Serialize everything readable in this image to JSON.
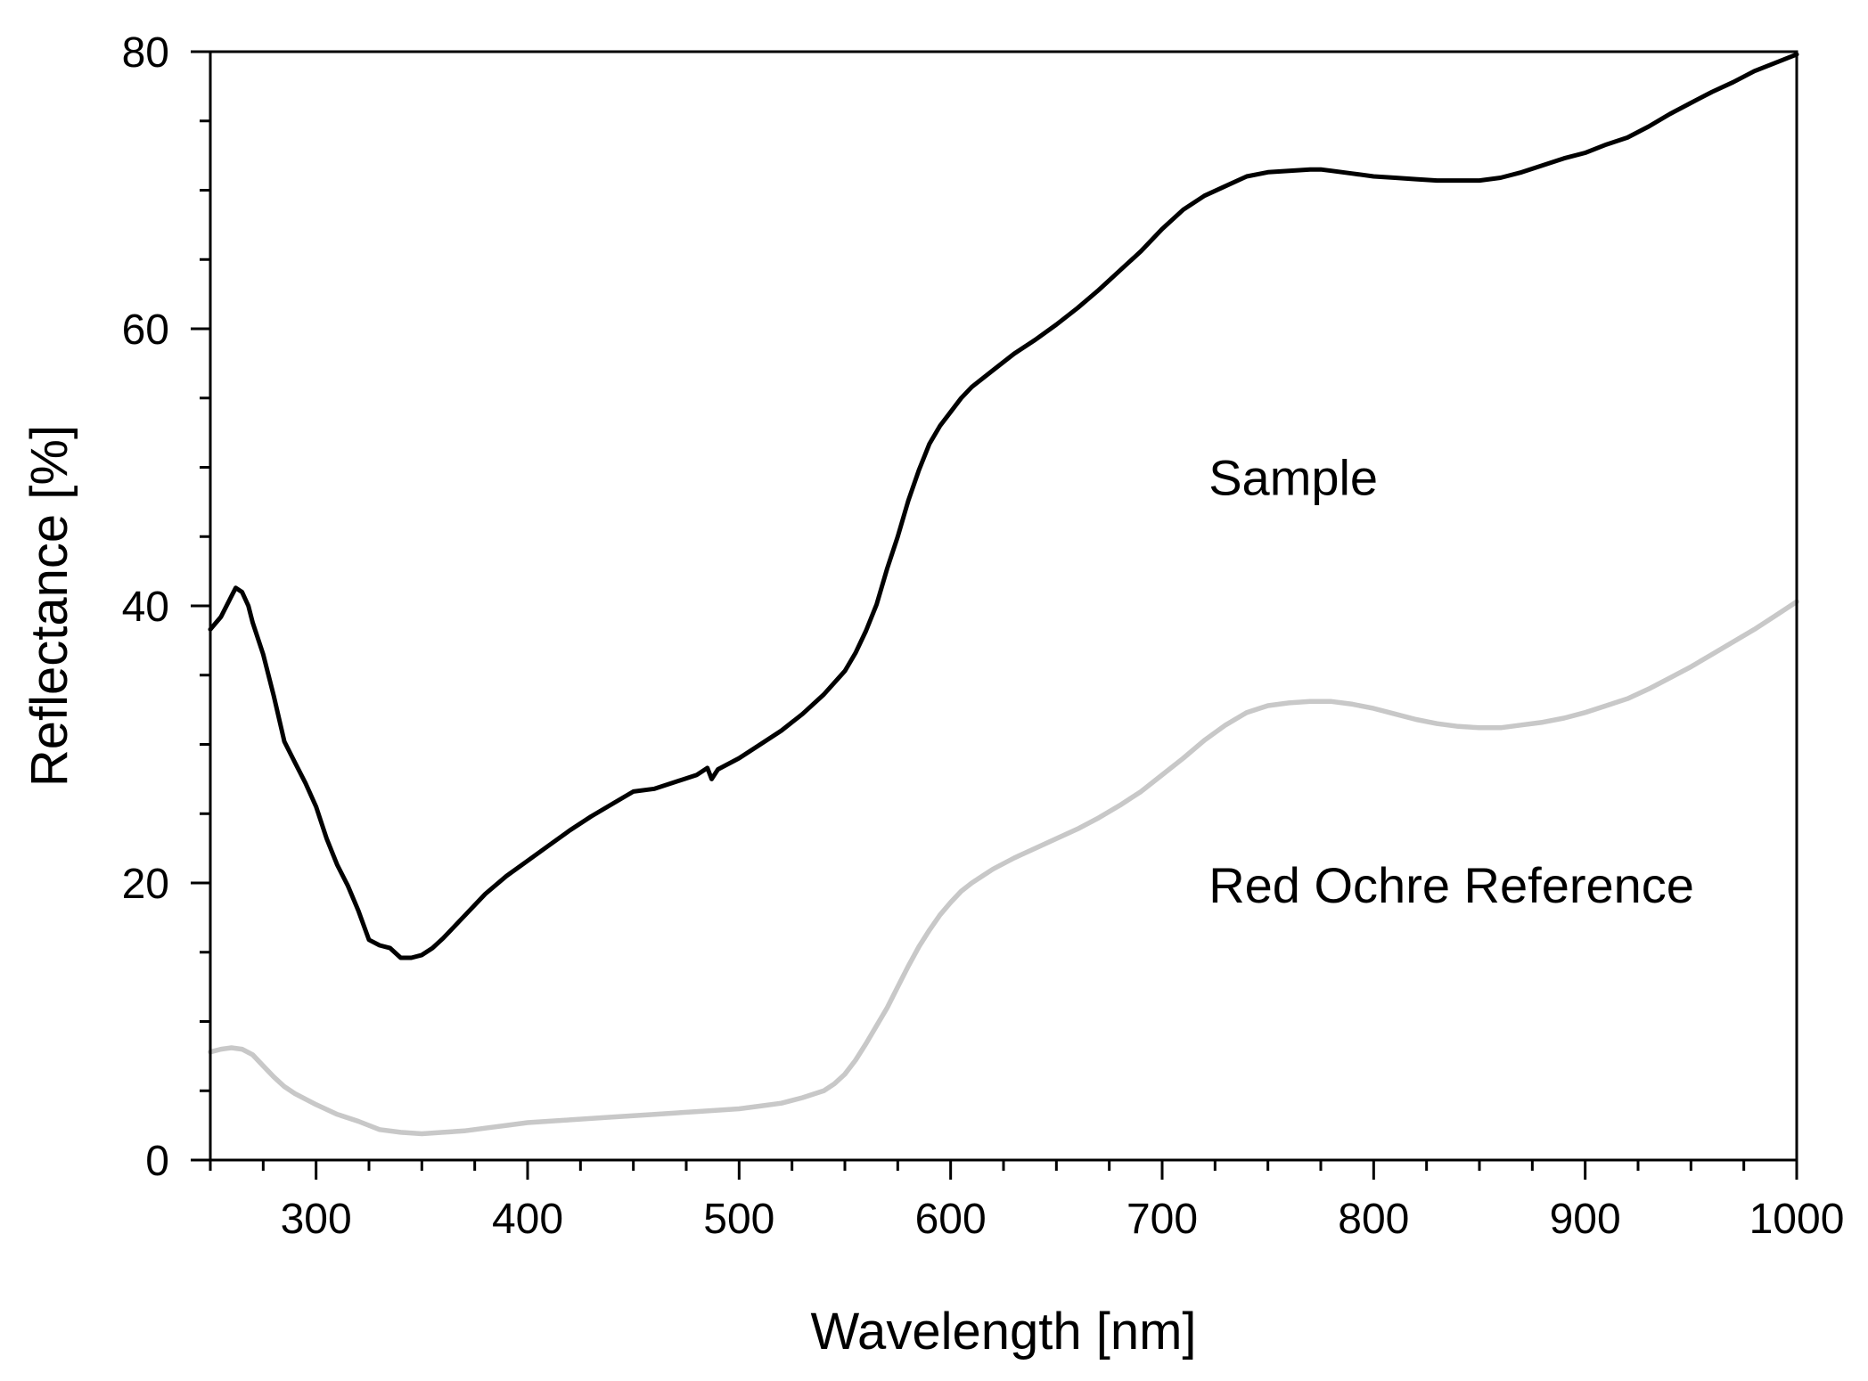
{
  "chart_data": {
    "type": "line",
    "title": "",
    "xlabel": "Wavelength [nm]",
    "ylabel": "Reflectance [%]",
    "xlim": [
      250,
      1000
    ],
    "ylim": [
      0,
      80
    ],
    "xticks": [
      300,
      400,
      500,
      600,
      700,
      800,
      900,
      1000
    ],
    "xtick_labels": [
      "300",
      "400",
      "500",
      "600",
      "700",
      "800",
      "900",
      "1000"
    ],
    "x_minor_step": 25,
    "yticks": [
      0,
      20,
      40,
      60,
      80
    ],
    "ytick_labels": [
      "0",
      "20",
      "40",
      "60",
      "80"
    ],
    "y_minor_step": 5,
    "grid": false,
    "legend": "none",
    "series": [
      {
        "name": "Sample",
        "color": "#000000",
        "label_anchor": [
          722,
          48
        ],
        "x": [
          250,
          255,
          260,
          262,
          265,
          268,
          270,
          275,
          280,
          285,
          290,
          295,
          300,
          305,
          310,
          315,
          320,
          325,
          330,
          335,
          340,
          345,
          350,
          355,
          360,
          370,
          380,
          390,
          400,
          410,
          420,
          430,
          440,
          450,
          460,
          470,
          480,
          485,
          487,
          490,
          500,
          510,
          520,
          530,
          540,
          550,
          555,
          560,
          565,
          570,
          575,
          580,
          585,
          590,
          595,
          600,
          605,
          610,
          620,
          630,
          640,
          650,
          660,
          670,
          680,
          690,
          700,
          710,
          720,
          730,
          740,
          750,
          760,
          770,
          775,
          780,
          790,
          800,
          810,
          820,
          830,
          840,
          850,
          860,
          870,
          880,
          890,
          900,
          910,
          920,
          930,
          940,
          950,
          960,
          970,
          980,
          990,
          1000
        ],
        "y": [
          38.3,
          39.2,
          40.7,
          41.3,
          41.0,
          40.0,
          38.8,
          36.5,
          33.5,
          30.2,
          28.7,
          27.2,
          25.5,
          23.2,
          21.3,
          19.8,
          18.0,
          15.9,
          15.5,
          15.3,
          14.6,
          14.6,
          14.8,
          15.3,
          16.0,
          17.6,
          19.2,
          20.5,
          21.6,
          22.7,
          23.8,
          24.8,
          25.7,
          26.6,
          26.8,
          27.3,
          27.8,
          28.3,
          27.5,
          28.2,
          29.0,
          30.0,
          31.0,
          32.2,
          33.6,
          35.3,
          36.6,
          38.2,
          40.1,
          42.7,
          45.0,
          47.6,
          49.8,
          51.7,
          53.0,
          54.0,
          55.0,
          55.8,
          57.0,
          58.2,
          59.2,
          60.3,
          61.5,
          62.8,
          64.2,
          65.6,
          67.2,
          68.6,
          69.6,
          70.3,
          71.0,
          71.3,
          71.4,
          71.5,
          71.5,
          71.4,
          71.2,
          71.0,
          70.9,
          70.8,
          70.7,
          70.7,
          70.7,
          70.9,
          71.3,
          71.8,
          72.3,
          72.7,
          73.3,
          73.8,
          74.6,
          75.5,
          76.3,
          77.1,
          77.8,
          78.6,
          79.2,
          79.8
        ]
      },
      {
        "name": "Red Ochre Reference",
        "color": "#c8c8c8",
        "label_anchor": [
          722,
          18.6
        ],
        "x": [
          250,
          255,
          260,
          265,
          270,
          275,
          280,
          285,
          290,
          300,
          310,
          320,
          330,
          340,
          350,
          360,
          370,
          380,
          390,
          400,
          420,
          440,
          460,
          480,
          500,
          510,
          520,
          530,
          540,
          545,
          550,
          555,
          560,
          565,
          570,
          575,
          580,
          585,
          590,
          595,
          600,
          605,
          610,
          615,
          620,
          630,
          640,
          650,
          660,
          670,
          680,
          690,
          700,
          710,
          720,
          730,
          740,
          750,
          760,
          770,
          780,
          790,
          800,
          810,
          820,
          830,
          840,
          850,
          860,
          870,
          880,
          890,
          900,
          910,
          920,
          930,
          940,
          950,
          960,
          970,
          980,
          990,
          1000
        ],
        "y": [
          7.8,
          8.0,
          8.1,
          8.0,
          7.6,
          6.8,
          6.0,
          5.3,
          4.8,
          4.0,
          3.3,
          2.8,
          2.2,
          2.0,
          1.9,
          2.0,
          2.1,
          2.3,
          2.5,
          2.7,
          2.9,
          3.1,
          3.3,
          3.5,
          3.7,
          3.9,
          4.1,
          4.5,
          5.0,
          5.5,
          6.2,
          7.2,
          8.4,
          9.7,
          11.0,
          12.5,
          14.0,
          15.4,
          16.6,
          17.7,
          18.6,
          19.4,
          20.0,
          20.5,
          21.0,
          21.8,
          22.5,
          23.2,
          23.9,
          24.7,
          25.6,
          26.6,
          27.8,
          29.0,
          30.3,
          31.4,
          32.3,
          32.8,
          33.0,
          33.1,
          33.1,
          32.9,
          32.6,
          32.2,
          31.8,
          31.5,
          31.3,
          31.2,
          31.2,
          31.4,
          31.6,
          31.9,
          32.3,
          32.8,
          33.3,
          34.0,
          34.8,
          35.6,
          36.5,
          37.4,
          38.3,
          39.3,
          40.3
        ]
      }
    ]
  }
}
